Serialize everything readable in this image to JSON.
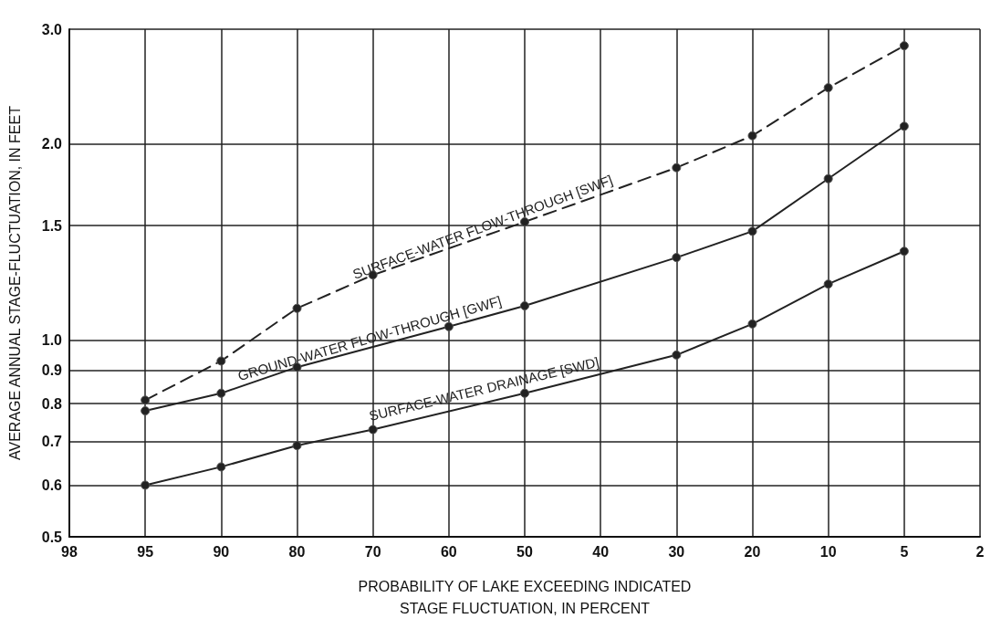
{
  "chart_data": {
    "type": "line",
    "xlabel": "PROBABILITY OF LAKE EXCEEDING INDICATED\nSTAGE FLUCTUATION, IN PERCENT",
    "ylabel": "AVERAGE ANNUAL STAGE-FLUCTUATION, IN FEET",
    "categories": [
      "98",
      "95",
      "90",
      "80",
      "70",
      "60",
      "50",
      "40",
      "30",
      "20",
      "10",
      "5",
      "2"
    ],
    "series": [
      {
        "name": "SURFACE-WATER FLOW-THROUGH [SWF]",
        "color": "#222222",
        "line_style": "dashed",
        "values": [
          null,
          0.81,
          0.93,
          1.12,
          1.26,
          null,
          1.52,
          null,
          1.84,
          2.06,
          2.44,
          2.83,
          null
        ]
      },
      {
        "name": "GROUND-WATER FLOW-THROUGH [GWF]",
        "color": "#222222",
        "line_style": "solid",
        "values": [
          null,
          0.78,
          0.83,
          0.91,
          null,
          1.05,
          1.13,
          null,
          1.34,
          1.47,
          1.77,
          2.13,
          null
        ]
      },
      {
        "name": "SURFACE-WATER DRAINAGE [SWD]",
        "color": "#222222",
        "line_style": "solid",
        "values": [
          null,
          0.6,
          0.64,
          0.69,
          0.73,
          null,
          0.83,
          null,
          0.95,
          1.06,
          1.22,
          1.37,
          null
        ]
      }
    ],
    "log": "y",
    "ylim": [
      0.5,
      3.0
    ],
    "yticks": [
      0.5,
      0.6,
      0.7,
      0.8,
      0.9,
      {
        "value": 1,
        "label": "1.0"
      },
      1.5,
      {
        "value": 2,
        "label": "2.0"
      },
      {
        "value": 3,
        "label": "3.0"
      }
    ],
    "grid": true,
    "marker": "circle"
  }
}
